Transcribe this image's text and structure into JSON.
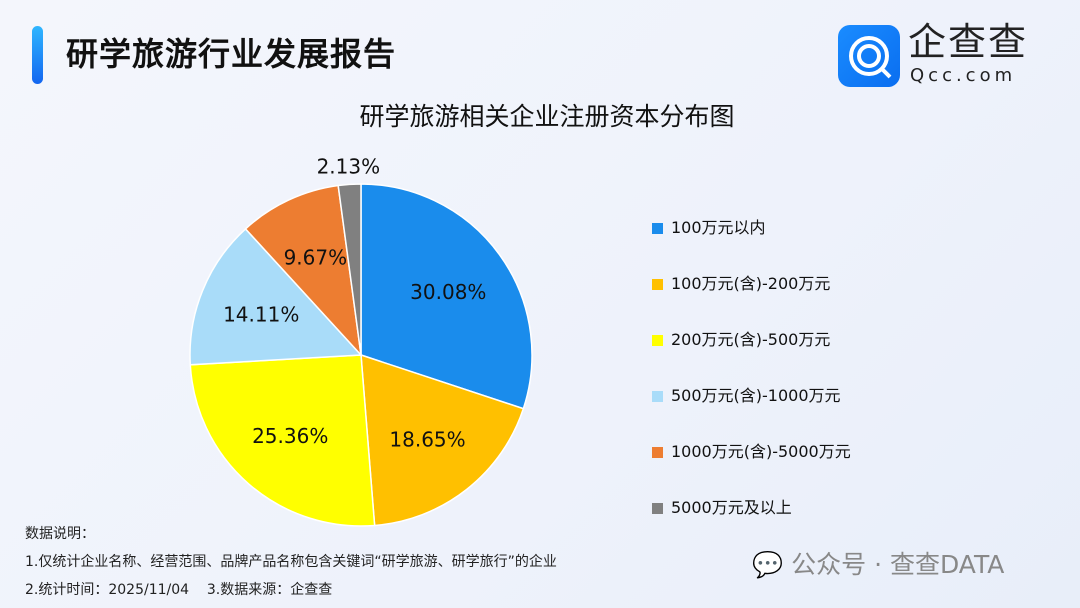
{
  "header": {
    "title": "研学旅游行业发展报告",
    "brand": "企查查",
    "brand_sub": "Qcc.com"
  },
  "chart_data": {
    "type": "pie",
    "title": "研学旅游相关企业注册资本分布图",
    "categories": [
      "100万元以内",
      "100万元(含)-200万元",
      "200万元(含)-500万元",
      "500万元(含)-1000万元",
      "1000万元(含)-5000万元",
      "5000万元及以上"
    ],
    "values": [
      30.08,
      18.65,
      25.36,
      14.11,
      9.67,
      2.13
    ],
    "labels": [
      "30.08%",
      "18.65%",
      "25.36%",
      "14.11%",
      "9.67%",
      "2.13%"
    ],
    "colors": [
      "#1a8cec",
      "#ffc000",
      "#ffff00",
      "#a9dcf9",
      "#ed7d31",
      "#808080"
    ],
    "start": "top",
    "direction": "clockwise",
    "legend": "right"
  },
  "notes": {
    "heading": "数据说明：",
    "line1": "1.仅统计企业名称、经营范围、品牌产品名称包含关键词“研学旅游、研学旅行”的企业",
    "line2": "2.统计时间：2025/11/04    3.数据来源：企查查"
  },
  "watermark": "公众号 · 查查DATA"
}
